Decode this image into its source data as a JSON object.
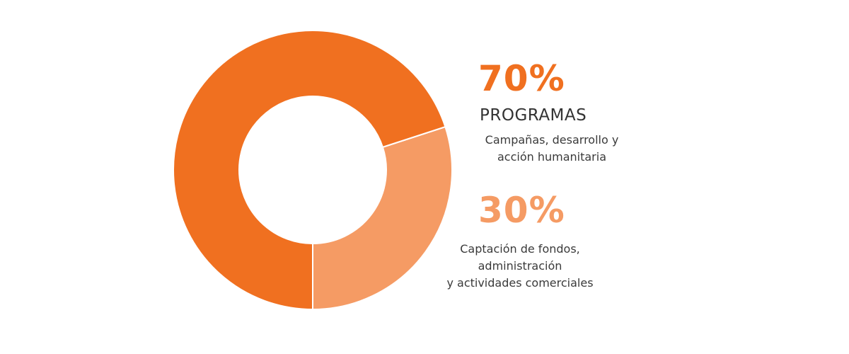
{
  "chart_data": {
    "type": "pie",
    "categories": [
      "PROGRAMAS",
      "Captación de fondos, administración y actividades comerciales"
    ],
    "values": [
      70,
      30
    ],
    "colors": [
      "#f07020",
      "#f59b64"
    ],
    "legend": [
      {
        "value_label": "70%",
        "title": "PROGRAMAS",
        "description": [
          "Campañas, desarrollo y",
          "acción humanitaria"
        ],
        "color": "#f07020"
      },
      {
        "value_label": "30%",
        "title": "",
        "description": [
          "Captación de fondos,",
          "administración",
          "y actividades comerciales"
        ],
        "color": "#f59b64"
      }
    ]
  }
}
